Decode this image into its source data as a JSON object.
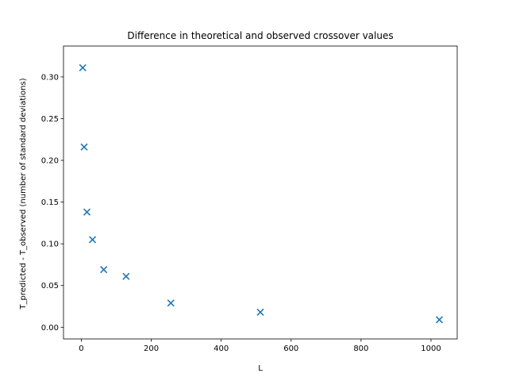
{
  "chart_data": {
    "type": "scatter",
    "title": "Difference in theoretical and observed crossover values",
    "xlabel": "L",
    "ylabel": "T_predicted - T_observed (number of standard deviations)",
    "xlim": [
      -51,
      1075
    ],
    "ylim": [
      -0.014,
      0.337
    ],
    "xticks": [
      0,
      200,
      400,
      600,
      800,
      1000
    ],
    "xtick_labels": [
      "0",
      "200",
      "400",
      "600",
      "800",
      "1000"
    ],
    "yticks": [
      0.0,
      0.05,
      0.1,
      0.15,
      0.2,
      0.25,
      0.3
    ],
    "ytick_labels": [
      "0.00",
      "0.05",
      "0.10",
      "0.15",
      "0.20",
      "0.25",
      "0.30"
    ],
    "marker": "x",
    "color": "#1f77b4",
    "grid": false,
    "series": [
      {
        "x": [
          4,
          8,
          16,
          32,
          64,
          128,
          256,
          512,
          1024
        ],
        "y": [
          0.311,
          0.216,
          0.138,
          0.105,
          0.069,
          0.061,
          0.029,
          0.018,
          0.009
        ]
      }
    ]
  }
}
